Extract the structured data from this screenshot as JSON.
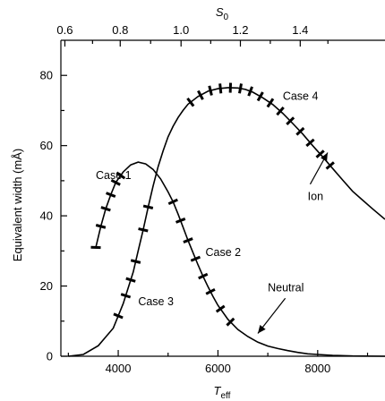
{
  "chart_data": {
    "type": "line",
    "x_axis": {
      "label": "T",
      "label_sub": "eff",
      "ticks": [
        4000,
        6000,
        8000
      ],
      "range": [
        2850,
        9350
      ]
    },
    "x_top_axis": {
      "label": "S",
      "label_sub": "0",
      "ticks": [
        "0.6",
        "0.8",
        "1.0",
        "1.2",
        "1.4"
      ],
      "tick_positions_teff": [
        2930,
        4040,
        5260,
        6450,
        7650
      ]
    },
    "y_axis": {
      "label": "Equivalent width (mÅ)",
      "ticks": [
        0,
        20,
        40,
        60,
        80
      ],
      "range": [
        0,
        90
      ]
    },
    "series": [
      {
        "name": "Neutral",
        "curve": [
          [
            3000,
            0
          ],
          [
            3300,
            0.5
          ],
          [
            3600,
            3
          ],
          [
            3900,
            8
          ],
          [
            4100,
            15
          ],
          [
            4300,
            24
          ],
          [
            4400,
            30
          ],
          [
            4500,
            36
          ],
          [
            4600,
            42.5
          ],
          [
            4700,
            48.5
          ],
          [
            4800,
            54
          ],
          [
            4900,
            58.5
          ],
          [
            5000,
            62.5
          ],
          [
            5100,
            65.5
          ],
          [
            5200,
            68
          ],
          [
            5300,
            70
          ],
          [
            5400,
            71.8
          ],
          [
            5600,
            74
          ],
          [
            5800,
            75.5
          ],
          [
            6000,
            76.2
          ],
          [
            6200,
            76.5
          ],
          [
            6400,
            76.4
          ],
          [
            6550,
            76
          ],
          [
            6700,
            75.2
          ],
          [
            6900,
            73.6
          ],
          [
            7100,
            71.7
          ],
          [
            7300,
            69.2
          ],
          [
            7500,
            66.3
          ],
          [
            7700,
            63.3
          ],
          [
            7900,
            60
          ],
          [
            8100,
            56.8
          ],
          [
            8300,
            53.5
          ],
          [
            8500,
            50.2
          ],
          [
            8700,
            47
          ],
          [
            8900,
            44.5
          ],
          [
            9100,
            42
          ],
          [
            9350,
            39
          ]
        ]
      },
      {
        "name": "Ion",
        "curve": [
          [
            3550,
            31
          ],
          [
            3650,
            37
          ],
          [
            3750,
            42
          ],
          [
            3850,
            46
          ],
          [
            3950,
            49.5
          ],
          [
            4100,
            52.5
          ],
          [
            4250,
            54.5
          ],
          [
            4400,
            55.3
          ],
          [
            4550,
            54.8
          ],
          [
            4700,
            53.2
          ],
          [
            4850,
            50.5
          ],
          [
            5000,
            46.8
          ],
          [
            5100,
            44
          ],
          [
            5200,
            40.5
          ],
          [
            5300,
            36.8
          ],
          [
            5400,
            33
          ],
          [
            5500,
            29.5
          ],
          [
            5600,
            26
          ],
          [
            5700,
            22.8
          ],
          [
            5800,
            19.8
          ],
          [
            5900,
            17
          ],
          [
            6000,
            14.5
          ],
          [
            6200,
            10.5
          ],
          [
            6400,
            7.6
          ],
          [
            6600,
            5.6
          ],
          [
            6800,
            4
          ],
          [
            7000,
            2.9
          ],
          [
            7200,
            2.2
          ],
          [
            7400,
            1.6
          ],
          [
            7600,
            1.1
          ],
          [
            7800,
            0.7
          ],
          [
            8000,
            0.5
          ],
          [
            8300,
            0.25
          ],
          [
            8700,
            0.08
          ],
          [
            9350,
            0
          ]
        ]
      }
    ],
    "observations": [
      {
        "name": "Case 1",
        "curve": "Ion",
        "x": [
          3550,
          3650,
          3750,
          3850,
          3950,
          4050
        ]
      },
      {
        "name": "Case 2",
        "curve": "Ion",
        "x": [
          5100,
          5250,
          5400,
          5550,
          5700,
          5850,
          6050,
          6250
        ]
      },
      {
        "name": "Case 3",
        "curve": "Neutral",
        "x": [
          4000,
          4150,
          4250,
          4350,
          4500,
          4600
        ]
      },
      {
        "name": "Case 4",
        "curve": "Neutral",
        "x": [
          5450,
          5650,
          5850,
          6050,
          6250,
          6450,
          6650,
          6850,
          7050,
          7250,
          7450,
          7650,
          7850,
          8050,
          8250
        ]
      }
    ],
    "annotations": [
      {
        "text": "Case 1",
        "x": 3550,
        "y": 50.5
      },
      {
        "text": "Case 2",
        "x": 5750,
        "y": 28.5
      },
      {
        "text": "Case 3",
        "x": 4400,
        "y": 14.5
      },
      {
        "text": "Case 4",
        "x": 7300,
        "y": 73
      },
      {
        "text": "Ion",
        "x": 7800,
        "y": 44.5
      },
      {
        "text": "Neutral",
        "x": 7000,
        "y": 18.5
      }
    ],
    "arrows": [
      {
        "label": "Ion",
        "from": [
          7850,
          49
        ],
        "to": [
          8200,
          58
        ]
      },
      {
        "label": "Neutral",
        "from": [
          7350,
          16.5
        ],
        "to": [
          6800,
          6.5
        ]
      }
    ],
    "grid": false
  }
}
